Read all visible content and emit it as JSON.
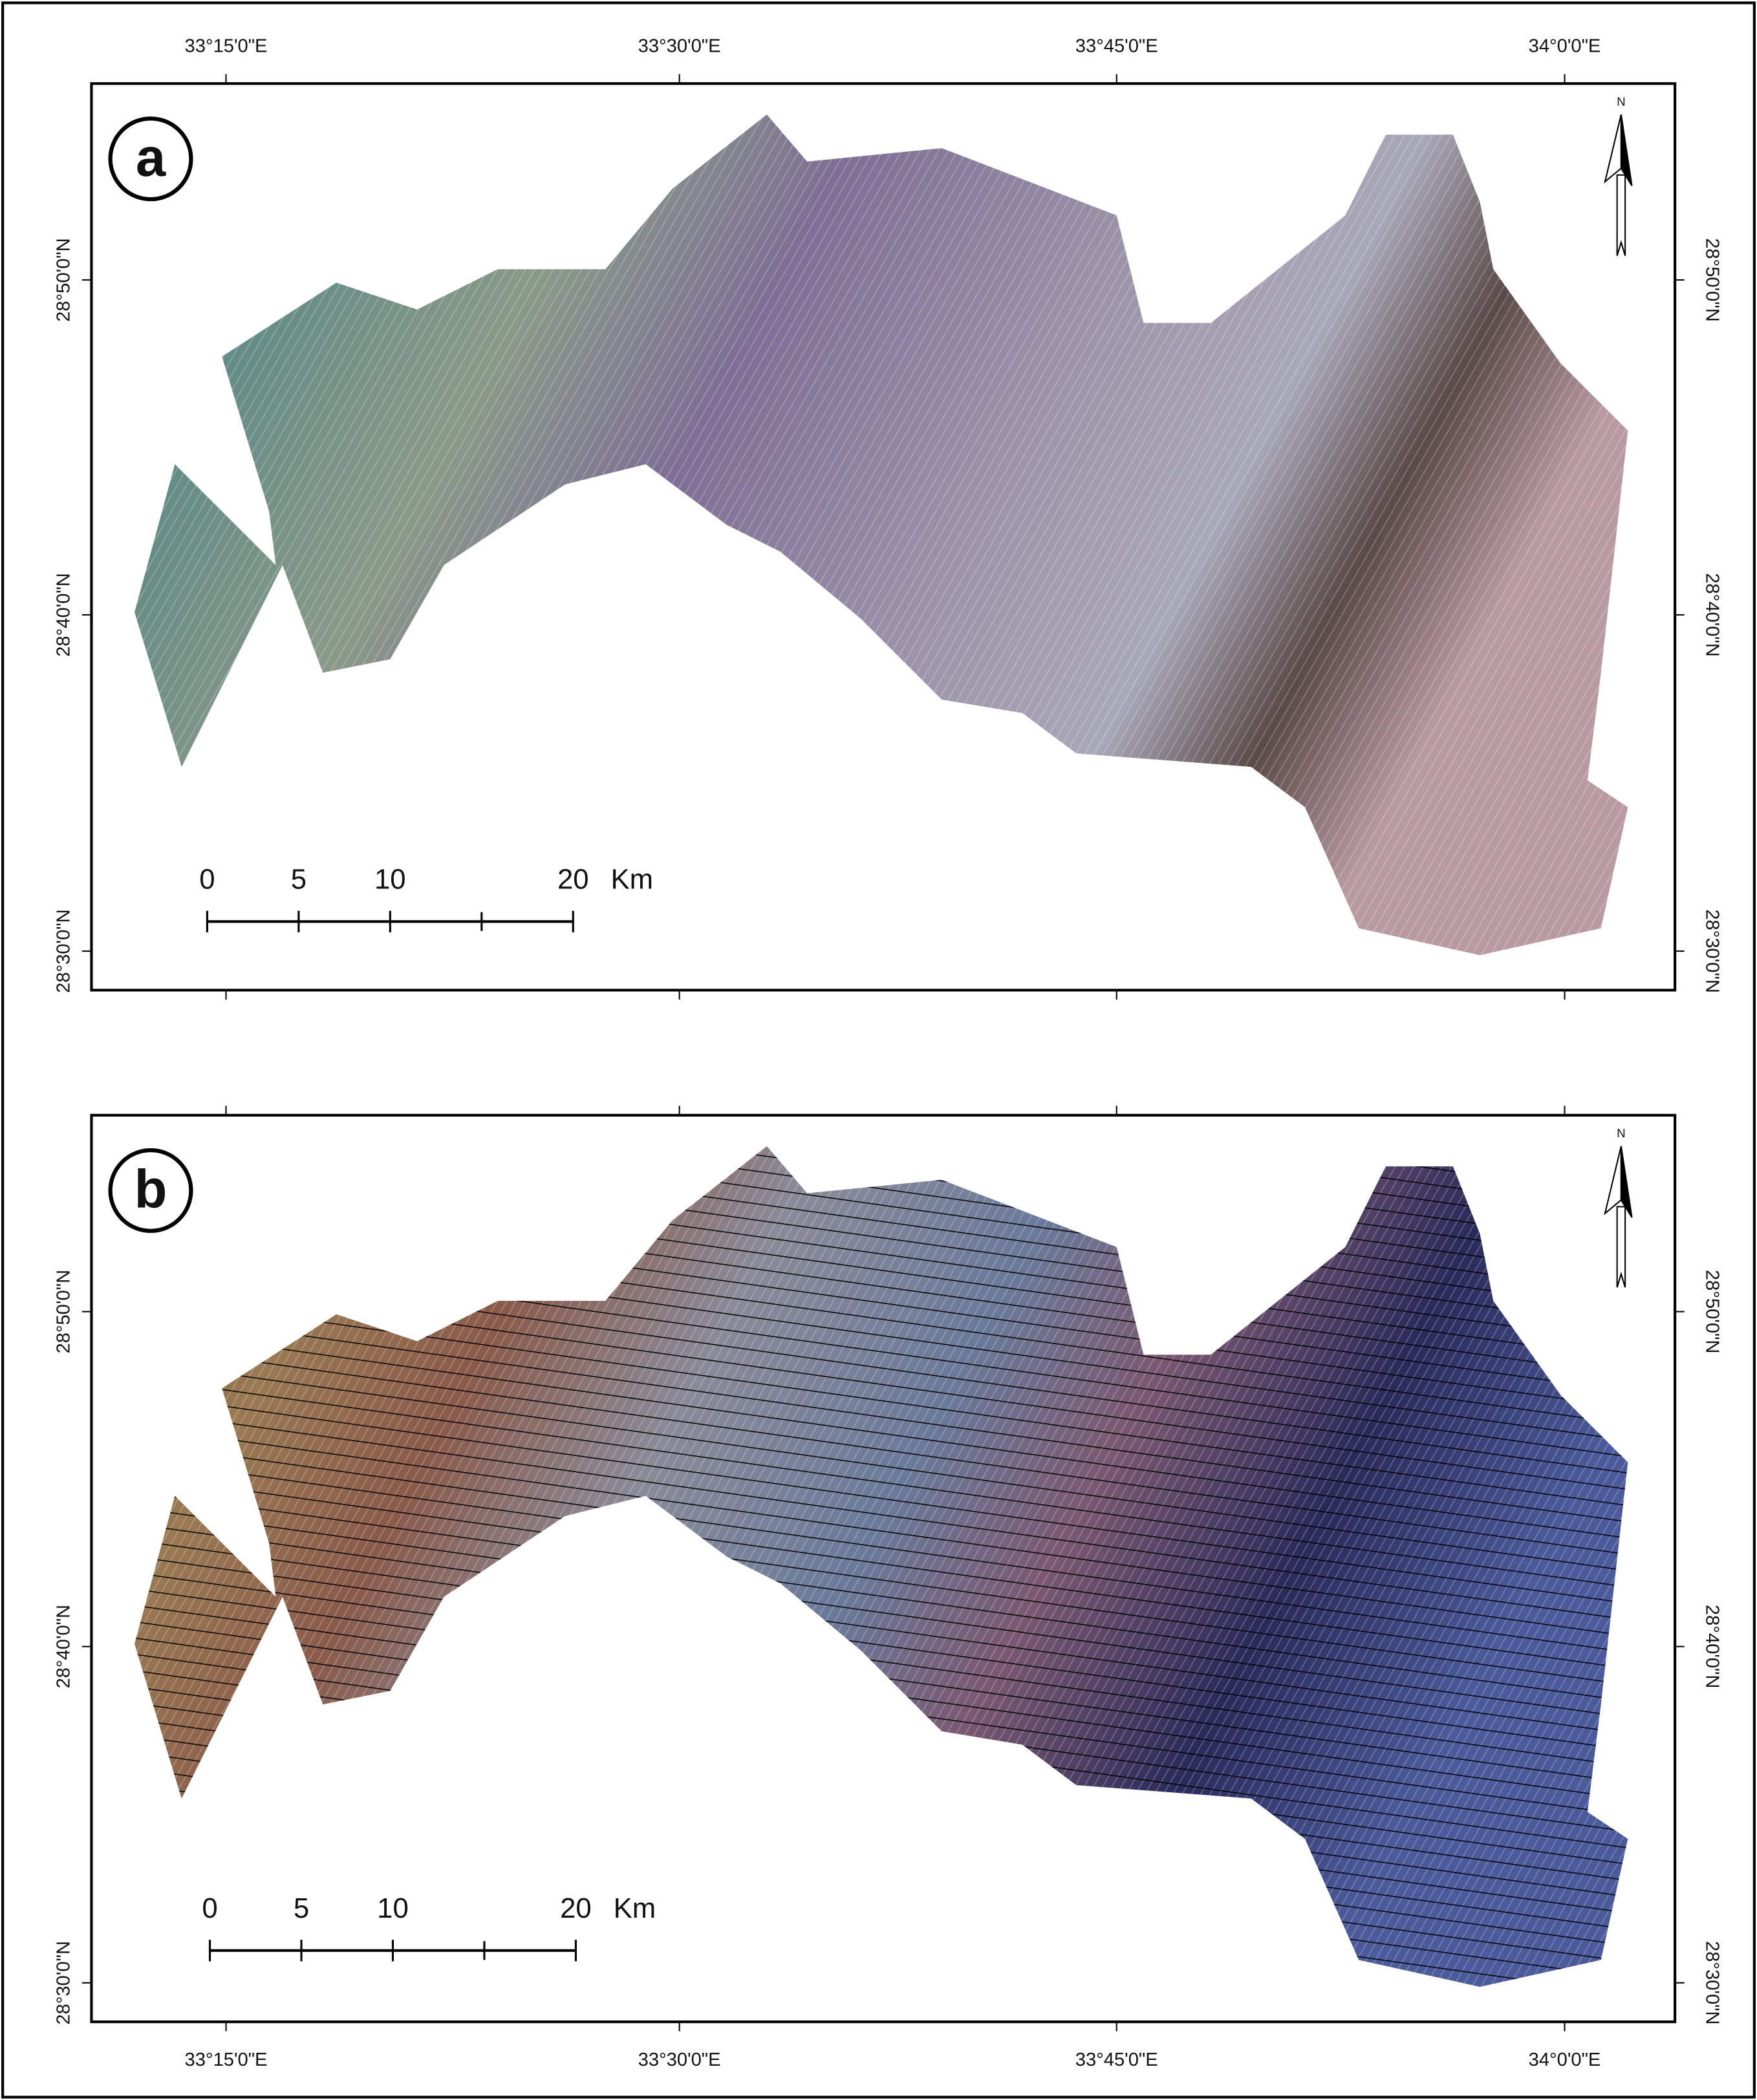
{
  "panels": [
    {
      "label": "a",
      "north": "N",
      "lon_labels": [
        "33°15'0\"E",
        "33°30'0\"E",
        "33°45'0\"E",
        "34°0'0\"E"
      ],
      "lat_labels": [
        "28°50'0\"N",
        "28°40'0\"N",
        "28°30'0\"N"
      ],
      "scale_bar": {
        "ticks": [
          0,
          5,
          10,
          20
        ],
        "unit": "Km"
      }
    },
    {
      "label": "b",
      "north": "N",
      "lon_labels": [
        "33°15'0\"E",
        "33°30'0\"E",
        "33°45'0\"E",
        "34°0'0\"E"
      ],
      "lat_labels": [
        "28°50'0\"N",
        "28°40'0\"N",
        "28°30'0\"N"
      ],
      "scale_bar": {
        "ticks": [
          0,
          5,
          10,
          20
        ],
        "unit": "Km"
      }
    }
  ]
}
